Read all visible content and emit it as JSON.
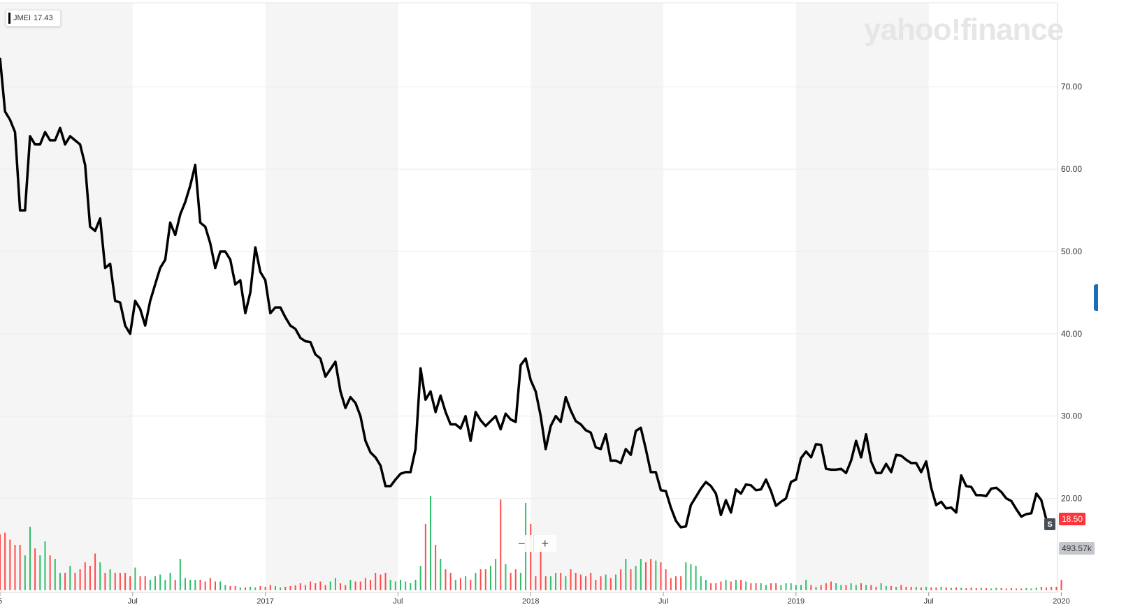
{
  "legend": {
    "symbol": "JMEI",
    "value": "17.43"
  },
  "watermark": "yahoo!finance",
  "price_tag": "18.50",
  "volume_tag": "493.57k",
  "event_badge": "S",
  "zoom": {
    "minus": "−",
    "plus": "+"
  },
  "colors": {
    "line": "#000000",
    "volume_up": "#2fbe6b",
    "volume_down": "#ff4b4b",
    "band": "#f5f5f5",
    "price_tag": "#ff333a"
  },
  "chart_data": {
    "type": "line",
    "series": [
      {
        "values": [
          73.5,
          67,
          66,
          64.5,
          55,
          55,
          64,
          63,
          63,
          64.5,
          63.5,
          63.5,
          65,
          63,
          64,
          63.5,
          63,
          60.5,
          53,
          52.5,
          54,
          48,
          48.5,
          44,
          43.8,
          41,
          40,
          44,
          43,
          41,
          44,
          46,
          48,
          49,
          53.5,
          52,
          54.5,
          56,
          58,
          60.5,
          53.5,
          53,
          51,
          48,
          50,
          50,
          49,
          46,
          46.5,
          42.5,
          45,
          50.5,
          47.5,
          46.5,
          42.5,
          43.2,
          43.2,
          42,
          41,
          40.6,
          39.5,
          39.1,
          39,
          37.5,
          37,
          34.8,
          35.7,
          36.6,
          33,
          31,
          32.3,
          31.6,
          30,
          27,
          25.6,
          25,
          24,
          21.5,
          21.5,
          22.3,
          23,
          23.2,
          23.2,
          26,
          35.8,
          32,
          33,
          30.5,
          32.5,
          30.5,
          29,
          29,
          28.5,
          30,
          27,
          30.5,
          29.5,
          28.8,
          29.4,
          30,
          28.4,
          30.3,
          29.6,
          29.3,
          36.2,
          37,
          34.4,
          33,
          30,
          26,
          28.8,
          30,
          29.3,
          32.3,
          30.7,
          29.4,
          29,
          28.3,
          28,
          26.2,
          26,
          27.8,
          24.6,
          24.6,
          24.3,
          26,
          25.3,
          28.2,
          28.6,
          26,
          23.2,
          23.2,
          21,
          20.9,
          18.9,
          17.3,
          16.5,
          16.6,
          19.2,
          20.2,
          21.2,
          22,
          21.5,
          20.6,
          18,
          19.8,
          18.3,
          21.1,
          20.6,
          21.7,
          21.6,
          21,
          21.1,
          22.3,
          20.9,
          19.1,
          19.6,
          20,
          22,
          22.3,
          24.9,
          25.7,
          25,
          26.6,
          26.5,
          23.6,
          23.5,
          23.5,
          23.6,
          23.1,
          24.6,
          27,
          25,
          27.8,
          24.5,
          23.1,
          23.1,
          24.2,
          23.2,
          25.3,
          25.2,
          24.7,
          24.3,
          24.3,
          23.2,
          24.5,
          21.3,
          19.2,
          19.6,
          18.8,
          18.9,
          18.3,
          22.8,
          21.5,
          21.4,
          20.4,
          20.4,
          20.3,
          21.2,
          21.3,
          20.8,
          20,
          19.7,
          18.7,
          17.8,
          18.1,
          18.2,
          20.6,
          19.8,
          17.43
        ]
      }
    ],
    "volume": {
      "values": [
        1.6,
        1.65,
        1.45,
        1.3,
        1.3,
        1.0,
        1.82,
        1.2,
        1.0,
        1.4,
        1.0,
        0.9,
        0.5,
        0.5,
        0.7,
        0.5,
        0.6,
        0.8,
        0.7,
        1.05,
        0.8,
        0.5,
        0.6,
        0.5,
        0.5,
        0.5,
        0.4,
        0.65,
        0.4,
        0.4,
        0.3,
        0.4,
        0.45,
        0.3,
        0.5,
        0.3,
        0.9,
        0.35,
        0.3,
        0.3,
        0.3,
        0.25,
        0.35,
        0.25,
        0.25,
        0.15,
        0.12,
        0.12,
        0.08,
        0.08,
        0.1,
        0.08,
        0.12,
        0.1,
        0.15,
        0.12,
        0.08,
        0.1,
        0.12,
        0.14,
        0.2,
        0.15,
        0.25,
        0.2,
        0.25,
        0.15,
        0.25,
        0.35,
        0.2,
        0.15,
        0.3,
        0.25,
        0.25,
        0.35,
        0.3,
        0.5,
        0.45,
        0.5,
        0.3,
        0.25,
        0.3,
        0.25,
        0.2,
        0.3,
        0.7,
        1.9,
        2.7,
        1.3,
        0.9,
        0.6,
        0.5,
        0.3,
        0.35,
        0.4,
        0.3,
        0.5,
        0.6,
        0.6,
        0.7,
        0.9,
        2.6,
        0.75,
        0.5,
        0.6,
        0.5,
        2.5,
        1.9,
        0.4,
        1.2,
        0.4,
        0.4,
        0.5,
        0.5,
        0.4,
        0.6,
        0.5,
        0.45,
        0.4,
        0.5,
        0.3,
        0.4,
        0.45,
        0.35,
        0.45,
        0.6,
        0.9,
        0.6,
        0.7,
        0.9,
        0.8,
        0.9,
        0.85,
        0.8,
        0.6,
        0.35,
        0.4,
        0.4,
        0.8,
        0.75,
        0.7,
        0.4,
        0.3,
        0.2,
        0.2,
        0.25,
        0.3,
        0.25,
        0.3,
        0.3,
        0.25,
        0.2,
        0.2,
        0.2,
        0.15,
        0.2,
        0.2,
        0.15,
        0.2,
        0.2,
        0.15,
        0.15,
        0.3,
        0.15,
        0.1,
        0.15,
        0.2,
        0.25,
        0.2,
        0.15,
        0.15,
        0.2,
        0.15,
        0.2,
        0.15,
        0.15,
        0.1,
        0.2,
        0.12,
        0.12,
        0.1,
        0.15,
        0.1,
        0.1,
        0.1,
        0.08,
        0.1,
        0.08,
        0.08,
        0.1,
        0.08,
        0.07,
        0.08,
        0.07,
        0.06,
        0.08,
        0.06,
        0.07,
        0.06,
        0.05,
        0.07,
        0.06,
        0.05,
        0.06,
        0.05,
        0.05,
        0.06,
        0.05,
        0.07,
        0.1,
        0.08,
        0.1,
        0.1,
        0.3
      ]
    },
    "x_ticks": [
      {
        "label": "5",
        "pos": 0
      },
      {
        "label": "Jul",
        "pos": 26.5
      },
      {
        "label": "2017",
        "pos": 53
      },
      {
        "label": "Jul",
        "pos": 79.5
      },
      {
        "label": "2018",
        "pos": 106
      },
      {
        "label": "Jul",
        "pos": 132.5
      },
      {
        "label": "2019",
        "pos": 159
      },
      {
        "label": "Jul",
        "pos": 185.5
      },
      {
        "label": "2020",
        "pos": 212
      }
    ],
    "y_ticks": [
      "20.00",
      "30.00",
      "40.00",
      "50.00",
      "60.00",
      "70.00"
    ],
    "ylim": [
      11.4,
      80.2
    ],
    "grid": true,
    "shaded_periods": [
      [
        0,
        26.5
      ],
      [
        53,
        79.5
      ],
      [
        106,
        132.5
      ],
      [
        159,
        185.5
      ]
    ]
  }
}
